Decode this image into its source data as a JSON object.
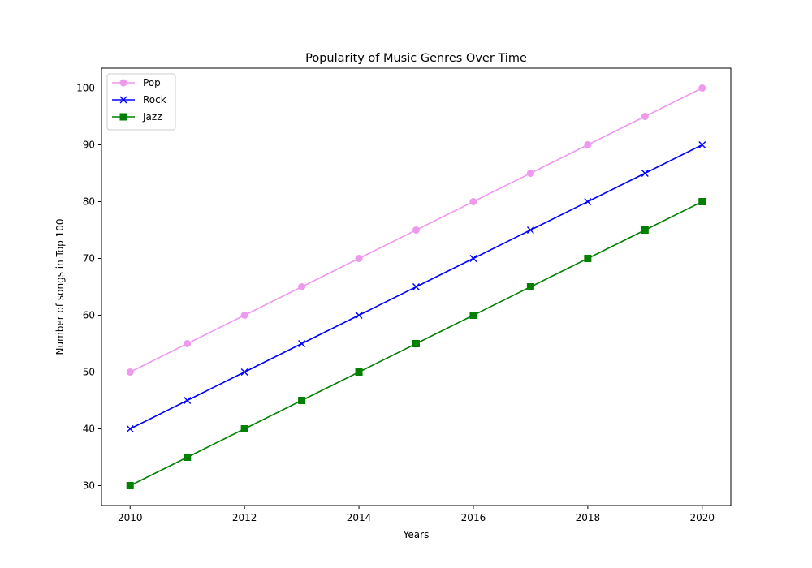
{
  "chart_data": {
    "type": "line",
    "title": "Popularity of Music Genres Over Time",
    "xlabel": "Years",
    "ylabel": "Number of songs in Top 100",
    "x": [
      2010,
      2011,
      2012,
      2013,
      2014,
      2015,
      2016,
      2017,
      2018,
      2019,
      2020
    ],
    "xlim": [
      2009.5,
      2020.5
    ],
    "ylim": [
      26.5,
      103.5
    ],
    "xticks": [
      2010,
      2012,
      2014,
      2016,
      2018,
      2020
    ],
    "yticks": [
      30,
      40,
      50,
      60,
      70,
      80,
      90,
      100
    ],
    "grid": false,
    "legend_position": "top-left",
    "series": [
      {
        "name": "Pop",
        "color": "#ee99ee",
        "marker": "circle",
        "values": [
          50,
          55,
          60,
          65,
          70,
          75,
          80,
          85,
          90,
          95,
          100
        ]
      },
      {
        "name": "Rock",
        "color": "#0000ff",
        "marker": "x",
        "values": [
          40,
          45,
          50,
          55,
          60,
          65,
          70,
          75,
          80,
          85,
          90
        ]
      },
      {
        "name": "Jazz",
        "color": "#008000",
        "marker": "square",
        "values": [
          30,
          35,
          40,
          45,
          50,
          55,
          60,
          65,
          70,
          75,
          80
        ]
      }
    ]
  }
}
